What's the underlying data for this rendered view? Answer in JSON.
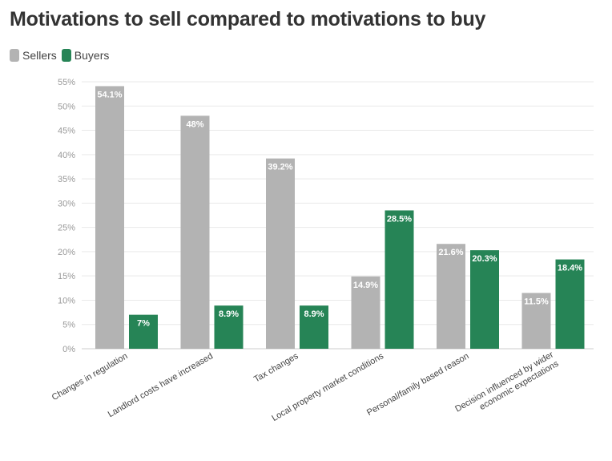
{
  "chart_data": {
    "type": "bar",
    "title": "Motivations to sell compared to motivations to buy",
    "categories": [
      "Changes in regulation",
      "Landlord costs have increased",
      "Tax changes",
      "Local property market conditions",
      "Personal/family based reason",
      "Decision influenced by wider economic expectations"
    ],
    "series": [
      {
        "name": "Sellers",
        "color": "#b3b3b3",
        "values": [
          54.1,
          48,
          39.2,
          14.9,
          21.6,
          11.5
        ],
        "labels": [
          "54.1%",
          "48%",
          "39.2%",
          "14.9%",
          "21.6%",
          "11.5%"
        ]
      },
      {
        "name": "Buyers",
        "color": "#268456",
        "values": [
          7,
          8.9,
          8.9,
          28.5,
          20.3,
          18.4
        ],
        "labels": [
          "7%",
          "8.9%",
          "8.9%",
          "28.5%",
          "20.3%",
          "18.4%"
        ]
      }
    ],
    "ylim": [
      0,
      55
    ],
    "yticks": [
      0,
      5,
      10,
      15,
      20,
      25,
      30,
      35,
      40,
      45,
      50,
      55
    ],
    "ytick_labels": [
      "0%",
      "5%",
      "10%",
      "15%",
      "20%",
      "25%",
      "30%",
      "35%",
      "40%",
      "45%",
      "50%",
      "55%"
    ],
    "grid": true,
    "legend_position": "top-left"
  }
}
